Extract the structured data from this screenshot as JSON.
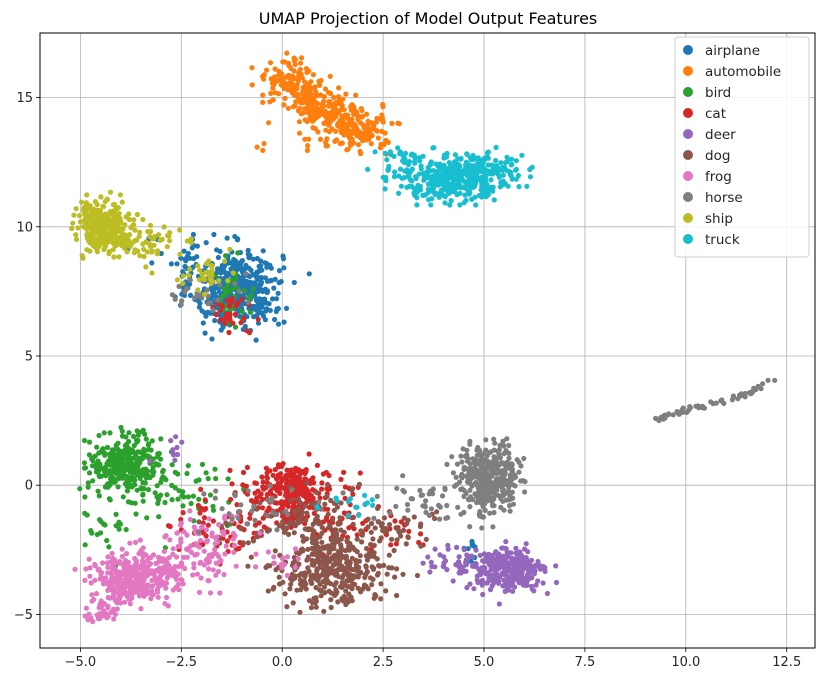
{
  "chart_data": {
    "type": "scatter",
    "title": "UMAP Projection of Model Output Features",
    "xlabel": "",
    "ylabel": "",
    "xlim": [
      -6.0,
      13.2
    ],
    "ylim": [
      -6.3,
      17.5
    ],
    "x_ticks": [
      -5.0,
      -2.5,
      0.0,
      2.5,
      5.0,
      7.5,
      10.0,
      12.5
    ],
    "x_tick_labels": [
      "−5.0",
      "−2.5",
      "0.0",
      "2.5",
      "5.0",
      "7.5",
      "10.0",
      "12.5"
    ],
    "y_ticks": [
      -5,
      0,
      5,
      10,
      15
    ],
    "y_tick_labels": [
      "−5",
      "0",
      "5",
      "10",
      "15"
    ],
    "grid": true,
    "legend_position": "top-right",
    "series": [
      {
        "name": "airplane",
        "color": "#1f77b4",
        "clusters": [
          {
            "cx": -1.1,
            "cy": 7.6,
            "sx": 0.55,
            "sy": 0.75,
            "n": 420
          },
          {
            "cx": -2.2,
            "cy": 8.6,
            "sx": 0.6,
            "sy": 0.5,
            "n": 40
          },
          {
            "cx": 4.6,
            "cy": -2.4,
            "sx": 0.2,
            "sy": 0.3,
            "n": 8
          }
        ]
      },
      {
        "name": "automobile",
        "color": "#ff7f0e",
        "clusters": [
          {
            "x": [
              0.0,
              0.4,
              0.8,
              1.3,
              1.8,
              2.3
            ],
            "y": [
              16.0,
              15.4,
              14.8,
              14.3,
              13.9,
              13.6
            ],
            "spread": 0.38,
            "n": 380
          },
          {
            "cx": 1.2,
            "cy": 13.3,
            "sx": 0.9,
            "sy": 0.3,
            "n": 30
          }
        ]
      },
      {
        "name": "bird",
        "color": "#2ca02c",
        "clusters": [
          {
            "cx": -3.9,
            "cy": 0.8,
            "sx": 0.45,
            "sy": 0.55,
            "n": 300
          },
          {
            "cx": -2.5,
            "cy": -0.3,
            "sx": 0.8,
            "sy": 0.7,
            "n": 60
          },
          {
            "cx": -1.3,
            "cy": 7.0,
            "sx": 0.3,
            "sy": 0.6,
            "n": 40
          },
          {
            "cx": -4.3,
            "cy": -1.6,
            "sx": 0.3,
            "sy": 0.5,
            "n": 20
          }
        ]
      },
      {
        "name": "cat",
        "color": "#d62728",
        "clusters": [
          {
            "cx": 0.2,
            "cy": -0.3,
            "sx": 0.55,
            "sy": 0.55,
            "n": 280
          },
          {
            "cx": -1.6,
            "cy": -1.7,
            "sx": 0.7,
            "sy": 0.6,
            "n": 60
          },
          {
            "cx": 1.3,
            "cy": -1.4,
            "sx": 0.8,
            "sy": 0.6,
            "n": 50
          },
          {
            "cx": -1.3,
            "cy": 6.7,
            "sx": 0.3,
            "sy": 0.5,
            "n": 30
          },
          {
            "cx": 3.0,
            "cy": -2.0,
            "sx": 0.4,
            "sy": 0.3,
            "n": 12
          }
        ]
      },
      {
        "name": "deer",
        "color": "#9467bd",
        "clusters": [
          {
            "cx": 5.6,
            "cy": -3.3,
            "sx": 0.45,
            "sy": 0.4,
            "n": 320
          },
          {
            "cx": 4.2,
            "cy": -2.9,
            "sx": 0.55,
            "sy": 0.3,
            "n": 40
          },
          {
            "cx": -2.7,
            "cy": 1.3,
            "sx": 0.3,
            "sy": 0.3,
            "n": 10
          }
        ]
      },
      {
        "name": "dog",
        "color": "#8c564b",
        "clusters": [
          {
            "cx": 1.3,
            "cy": -3.2,
            "sx": 0.65,
            "sy": 0.7,
            "n": 380
          },
          {
            "cx": 0.6,
            "cy": -1.2,
            "sx": 0.6,
            "sy": 0.6,
            "n": 80
          },
          {
            "cx": 2.7,
            "cy": -1.6,
            "sx": 0.6,
            "sy": 0.5,
            "n": 40
          },
          {
            "cx": -1.0,
            "cy": -1.5,
            "sx": 0.6,
            "sy": 0.4,
            "n": 20
          }
        ]
      },
      {
        "name": "frog",
        "color": "#e377c2",
        "clusters": [
          {
            "cx": -3.6,
            "cy": -3.5,
            "sx": 0.55,
            "sy": 0.5,
            "n": 300
          },
          {
            "x": [
              -4.6,
              -4.3,
              -4.0,
              -3.7
            ],
            "y": [
              -5.2,
              -4.7,
              -4.2,
              -3.8
            ],
            "spread": 0.18,
            "n": 80
          },
          {
            "cx": -2.2,
            "cy": -2.7,
            "sx": 0.45,
            "sy": 0.6,
            "n": 80
          },
          {
            "cx": -1.5,
            "cy": -1.8,
            "sx": 0.4,
            "sy": 0.4,
            "n": 30
          },
          {
            "cx": 0.2,
            "cy": -2.9,
            "sx": 0.4,
            "sy": 0.3,
            "n": 15
          }
        ]
      },
      {
        "name": "horse",
        "color": "#7f7f7f",
        "clusters": [
          {
            "cx": 5.15,
            "cy": 0.35,
            "sx": 0.38,
            "sy": 0.55,
            "n": 360
          },
          {
            "cx": 3.5,
            "cy": -0.6,
            "sx": 0.7,
            "sy": 0.35,
            "n": 40
          },
          {
            "x": [
              9.2,
              10.0,
              10.8,
              11.6,
              12.3
            ],
            "y": [
              2.5,
              2.9,
              3.2,
              3.6,
              4.2
            ],
            "spread": 0.05,
            "n": 60
          },
          {
            "cx": -1.8,
            "cy": 7.6,
            "sx": 0.4,
            "sy": 0.35,
            "n": 30
          },
          {
            "cx": -0.8,
            "cy": -0.9,
            "sx": 0.8,
            "sy": 0.5,
            "n": 30
          },
          {
            "cx": 5.05,
            "cy": -1.0,
            "sx": 0.15,
            "sy": 0.5,
            "n": 20
          }
        ]
      },
      {
        "name": "ship",
        "color": "#bcbd22",
        "clusters": [
          {
            "cx": -4.4,
            "cy": 10.0,
            "sx": 0.35,
            "sy": 0.45,
            "n": 300
          },
          {
            "cx": -3.4,
            "cy": 9.4,
            "sx": 0.45,
            "sy": 0.35,
            "n": 60
          },
          {
            "cx": -1.9,
            "cy": 8.2,
            "sx": 0.4,
            "sy": 0.35,
            "n": 30
          }
        ]
      },
      {
        "name": "truck",
        "color": "#17becf",
        "clusters": [
          {
            "cx": 4.1,
            "cy": 11.8,
            "sx": 0.55,
            "sy": 0.4,
            "n": 280
          },
          {
            "cx": 5.1,
            "cy": 12.2,
            "sx": 0.45,
            "sy": 0.35,
            "n": 140
          },
          {
            "cx": 3.0,
            "cy": 12.3,
            "sx": 0.35,
            "sy": 0.4,
            "n": 40
          },
          {
            "cx": 1.6,
            "cy": -0.8,
            "sx": 0.4,
            "sy": 0.2,
            "n": 15
          }
        ]
      }
    ]
  }
}
